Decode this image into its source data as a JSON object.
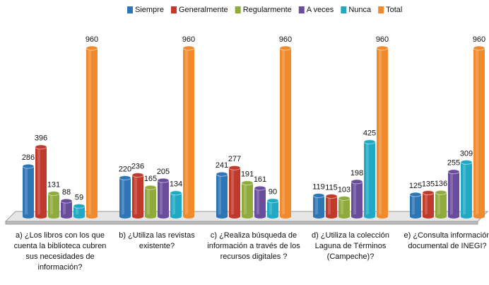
{
  "chart_data": {
    "type": "bar",
    "categories": [
      "a) ¿Los libros con los que cuenta la biblioteca cubren sus necesidades de información?",
      "b) ¿Utiliza las revistas existente?",
      "c) ¿Realiza búsqueda de información a través de los recursos digitales ?",
      "d) ¿Utiliza la colección Laguna de Términos (Campeche)?",
      "e) ¿Consulta información documental de INEGI?"
    ],
    "series": [
      {
        "name": "Siempre",
        "color": "#2e75b6",
        "values": [
          286,
          220,
          241,
          119,
          125
        ]
      },
      {
        "name": "Generalmente",
        "color": "#c0392b",
        "values": [
          396,
          236,
          277,
          115,
          135
        ]
      },
      {
        "name": "Regularmente",
        "color": "#8fab3c",
        "values": [
          131,
          165,
          191,
          103,
          136
        ]
      },
      {
        "name": "A veces",
        "color": "#6a4c9c",
        "values": [
          88,
          205,
          161,
          198,
          255
        ]
      },
      {
        "name": "Nunca",
        "color": "#1fa9c4",
        "values": [
          59,
          134,
          90,
          425,
          309
        ]
      },
      {
        "name": "Total",
        "color": "#f08a2c",
        "values": [
          960,
          960,
          960,
          960,
          960
        ]
      }
    ],
    "legend": "top"
  }
}
